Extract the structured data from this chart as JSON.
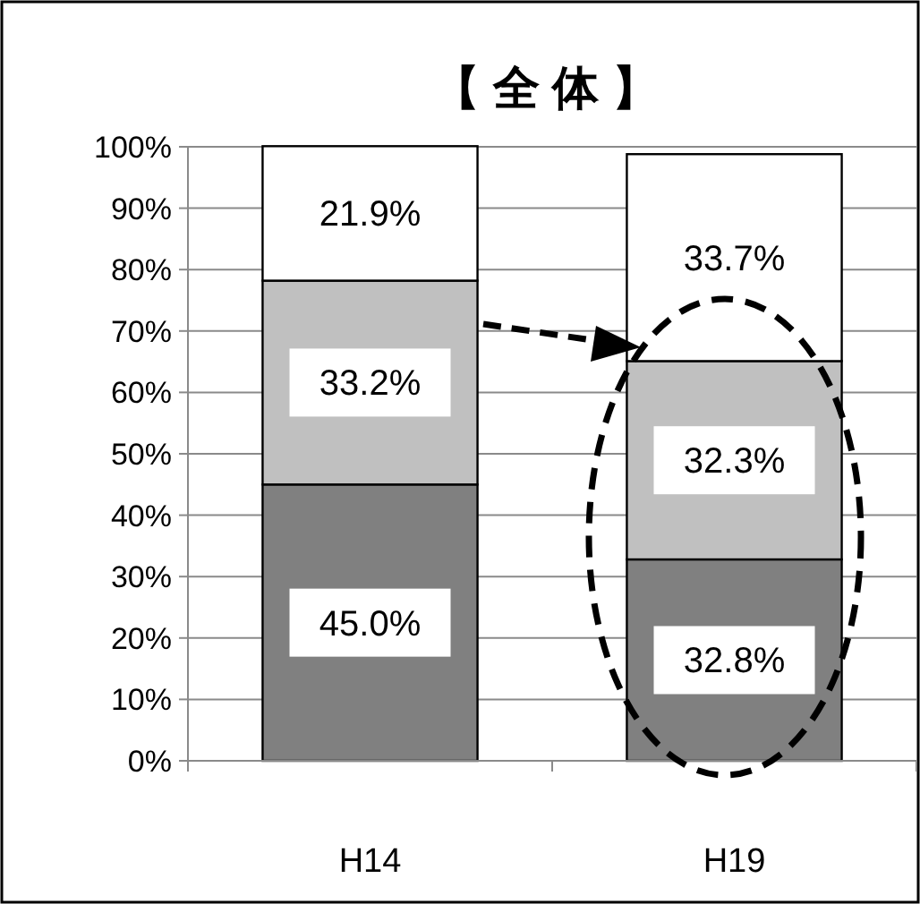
{
  "chart_data": {
    "type": "bar",
    "title": "【 全 体 】",
    "stacked": true,
    "categories": [
      "H14",
      "H19"
    ],
    "series": [
      {
        "color": "#808080",
        "values": [
          45.0,
          32.8
        ],
        "value_labels": [
          "45.0%",
          "32.8%"
        ]
      },
      {
        "color": "#c0c0c0",
        "values": [
          33.2,
          32.3
        ],
        "value_labels": [
          "33.2%",
          "32.3%"
        ]
      },
      {
        "color": "#ffffff",
        "values": [
          21.9,
          33.7
        ],
        "value_labels": [
          "21.9%",
          "33.7%"
        ]
      }
    ],
    "ylim": [
      0,
      100
    ],
    "yticks": [
      {
        "value": 0,
        "label": "0%"
      },
      {
        "value": 10,
        "label": "10%"
      },
      {
        "value": 20,
        "label": "20%"
      },
      {
        "value": 30,
        "label": "30%"
      },
      {
        "value": 40,
        "label": "40%"
      },
      {
        "value": 50,
        "label": "50%"
      },
      {
        "value": 60,
        "label": "60%"
      },
      {
        "value": 70,
        "label": "70%"
      },
      {
        "value": 80,
        "label": "80%"
      },
      {
        "value": 90,
        "label": "90%"
      },
      {
        "value": 100,
        "label": "100%"
      }
    ],
    "grid": "y"
  }
}
